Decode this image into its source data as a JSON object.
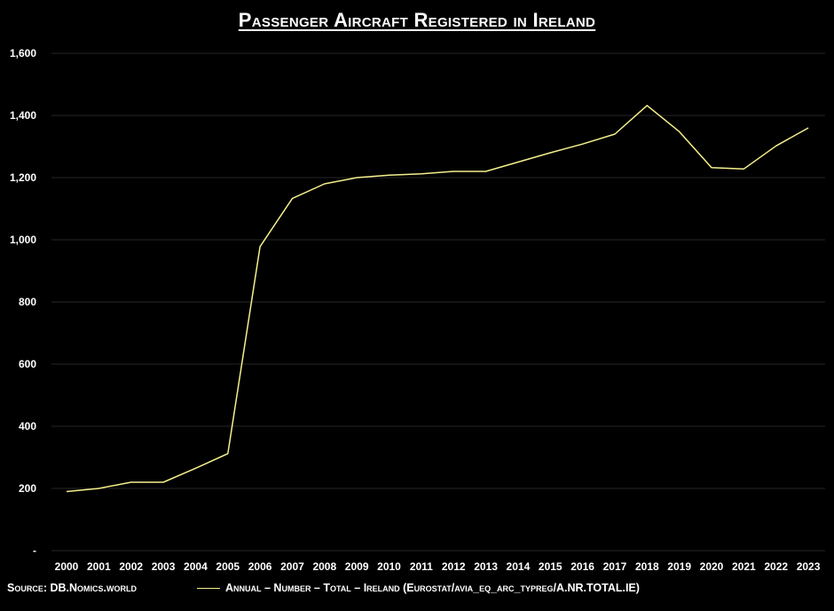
{
  "chart_data": {
    "type": "line",
    "title": "Passenger Aircraft Registered in Ireland",
    "x": [
      "2000",
      "2001",
      "2002",
      "2003",
      "2004",
      "2005",
      "2006",
      "2007",
      "2008",
      "2009",
      "2010",
      "2011",
      "2012",
      "2013",
      "2014",
      "2015",
      "2016",
      "2017",
      "2018",
      "2019",
      "2020",
      "2021",
      "2022",
      "2023"
    ],
    "series": [
      {
        "name": "Annual – Number – Total – Ireland (Eurostat/avia_eq_arc_typreg/A.NR.TOTAL.IE)",
        "color": "#f5f08c",
        "values": [
          190,
          200,
          220,
          220,
          265,
          312,
          978,
          1133,
          1180,
          1200,
          1208,
          1212,
          1220,
          1220,
          1250,
          1280,
          1308,
          1340,
          1432,
          1348,
          1232,
          1228,
          1302,
          1360
        ]
      }
    ],
    "yticks": [
      "-",
      "200",
      "400",
      "600",
      "800",
      "1,000",
      "1,200",
      "1,400",
      "1,600"
    ],
    "ylim": [
      0,
      1600
    ],
    "grid": true,
    "legend_position": "bottom",
    "source": "Source: DB.Nomics.world"
  }
}
